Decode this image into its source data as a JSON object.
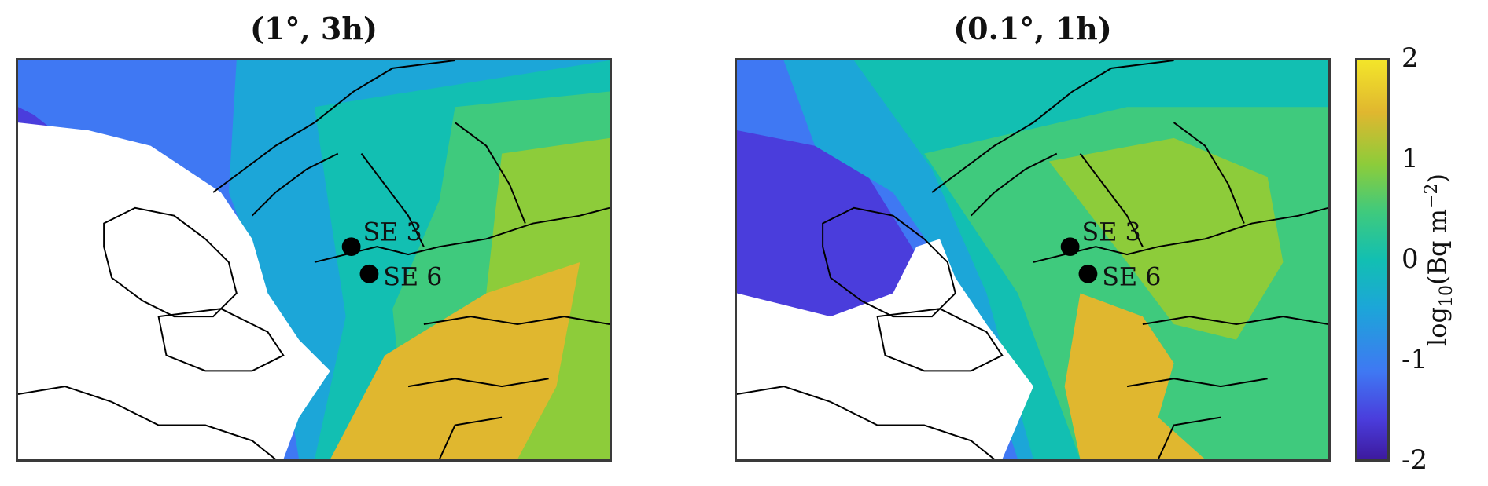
{
  "panels": [
    {
      "title": "(1°, 3h)",
      "stations": [
        {
          "name": "SE 3"
        },
        {
          "name": "SE 6"
        }
      ]
    },
    {
      "title": "(0.1°, 1h)",
      "stations": [
        {
          "name": "SE 3"
        },
        {
          "name": "SE 6"
        }
      ]
    }
  ],
  "colorbar": {
    "label_prefix": "log",
    "label_sub": "10",
    "label_mid": "(Bq m",
    "label_sup": "−2",
    "label_suffix": ")",
    "ticks": [
      "2",
      "1",
      "0",
      "-1",
      "-2"
    ],
    "range": [
      -2,
      2
    ],
    "colormap": "parula"
  },
  "colors": {
    "ocean_deep": "#3d1a9e",
    "blue": "#3f78f3",
    "teal": "#12bfb2",
    "green": "#3fca7d",
    "lime": "#8dcc3a",
    "orange": "#e0b72f",
    "land": "#ffffff",
    "coast": "#000000"
  }
}
